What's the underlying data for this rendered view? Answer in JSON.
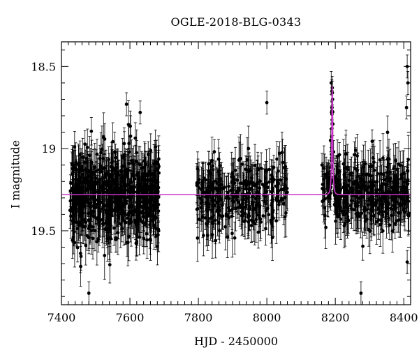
{
  "chart_data": {
    "type": "scatter",
    "title": "OGLE-2018-BLG-0343",
    "xlabel": "HJD - 2450000",
    "ylabel": "I magnitude",
    "xlim": [
      7400,
      8420
    ],
    "ylim": [
      19.95,
      18.35
    ],
    "y_inverted": true,
    "xticks": [
      7400,
      7600,
      7800,
      8000,
      8200,
      8400
    ],
    "yticks": [
      18.5,
      19,
      19.5
    ],
    "ytick_labels": [
      "18.5",
      "19",
      "19.5"
    ],
    "colors": {
      "points": "#000000",
      "model": "#cc33cc"
    },
    "baseline_magnitude": 19.28,
    "seasons": [
      {
        "start": 7425,
        "end": 7685,
        "n_points": 700,
        "mean_mag": 19.31,
        "scatter": 0.14
      },
      {
        "start": 7795,
        "end": 8060,
        "n_points": 330,
        "mean_mag": 19.3,
        "scatter": 0.11
      },
      {
        "start": 8160,
        "end": 8415,
        "n_points": 380,
        "mean_mag": 19.3,
        "scatter": 0.11
      }
    ],
    "event": {
      "t0": 8191,
      "peak_mag": 18.62,
      "tE": 4.5
    },
    "notable_points": [
      {
        "x": 8188,
        "y": 18.6
      },
      {
        "x": 8190,
        "y": 18.65
      },
      {
        "x": 8191,
        "y": 18.63
      },
      {
        "x": 8192,
        "y": 18.7
      },
      {
        "x": 8189,
        "y": 18.78
      },
      {
        "x": 8193,
        "y": 18.85
      },
      {
        "x": 8195,
        "y": 19.02
      },
      {
        "x": 8186,
        "y": 18.95
      },
      {
        "x": 8410,
        "y": 18.5
      },
      {
        "x": 8412,
        "y": 18.6
      },
      {
        "x": 8408,
        "y": 18.75
      },
      {
        "x": 8000,
        "y": 18.72
      },
      {
        "x": 7590,
        "y": 18.73
      },
      {
        "x": 7630,
        "y": 18.78
      },
      {
        "x": 7480,
        "y": 19.88
      },
      {
        "x": 8275,
        "y": 19.88
      },
      {
        "x": 8410,
        "y": 19.69
      }
    ]
  }
}
